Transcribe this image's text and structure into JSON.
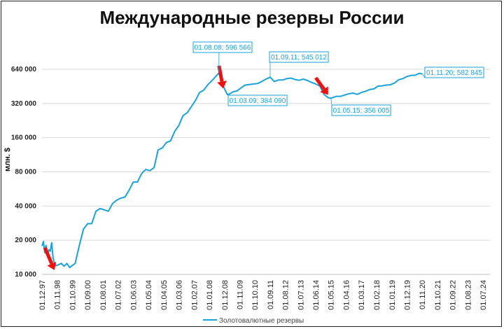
{
  "title": "Международные резервы России",
  "chart_data": {
    "type": "line",
    "ylabel": "млн. $",
    "yscale": "log2",
    "ylim": [
      10000,
      900000
    ],
    "yticks": [
      10000,
      20000,
      40000,
      80000,
      160000,
      320000,
      640000
    ],
    "ytick_labels": [
      "10 000",
      "20 000",
      "40 000",
      "80 000",
      "160 000",
      "320 000",
      "640 000"
    ],
    "xlim": [
      "1997-12-01",
      "2024-12-01"
    ],
    "xtick_labels": [
      "01.12.97",
      "01.11.98",
      "01.10.99",
      "01.09.00",
      "01.08.01",
      "01.07.02",
      "01.06.03",
      "01.05.04",
      "01.04.05",
      "01.03.06",
      "01.02.07",
      "01.01.08",
      "01.12.08",
      "01.11.09",
      "01.10.10",
      "01.09.11",
      "01.08.12",
      "01.07.13",
      "01.06.14",
      "01.05.15",
      "01.04.16",
      "01.03.17",
      "01.02.18",
      "01.01.19",
      "01.12.19",
      "01.11.20",
      "01.10.21",
      "01.09.22",
      "01.08.23",
      "01.07.24"
    ],
    "series": [
      {
        "name": "Золотовалютные резервы",
        "color": "#1aa3d9",
        "x": [
          "1997-12-01",
          "1998-01-01",
          "1998-02-01",
          "1998-03-01",
          "1998-04-01",
          "1998-05-01",
          "1998-06-01",
          "1998-07-01",
          "1998-08-01",
          "1998-09-01",
          "1998-10-01",
          "1998-11-01",
          "1998-12-01",
          "1999-02-01",
          "1999-04-01",
          "1999-06-01",
          "1999-08-01",
          "1999-10-01",
          "1999-12-01",
          "2000-03-01",
          "2000-06-01",
          "2000-09-01",
          "2000-12-01",
          "2001-03-01",
          "2001-06-01",
          "2001-09-01",
          "2001-12-01",
          "2002-03-01",
          "2002-06-01",
          "2002-09-01",
          "2002-12-01",
          "2003-03-01",
          "2003-06-01",
          "2003-09-01",
          "2003-12-01",
          "2004-03-01",
          "2004-06-01",
          "2004-09-01",
          "2004-12-01",
          "2005-03-01",
          "2005-06-01",
          "2005-09-01",
          "2005-12-01",
          "2006-03-01",
          "2006-06-01",
          "2006-09-01",
          "2006-12-01",
          "2007-03-01",
          "2007-06-01",
          "2007-09-01",
          "2007-12-01",
          "2008-03-01",
          "2008-06-01",
          "2008-08-01",
          "2008-10-01",
          "2008-12-01",
          "2009-02-01",
          "2009-03-01",
          "2009-06-01",
          "2009-09-01",
          "2009-12-01",
          "2010-03-01",
          "2010-06-01",
          "2010-09-01",
          "2010-12-01",
          "2011-03-01",
          "2011-06-01",
          "2011-09-01",
          "2011-12-01",
          "2012-03-01",
          "2012-06-01",
          "2012-09-01",
          "2012-12-01",
          "2013-03-01",
          "2013-06-01",
          "2013-09-01",
          "2013-12-01",
          "2014-03-01",
          "2014-06-01",
          "2014-09-01",
          "2014-12-01",
          "2015-03-01",
          "2015-05-01",
          "2015-09-01",
          "2015-12-01",
          "2016-03-01",
          "2016-06-01",
          "2016-09-01",
          "2016-12-01",
          "2017-03-01",
          "2017-06-01",
          "2017-09-01",
          "2017-12-01",
          "2018-03-01",
          "2018-06-01",
          "2018-09-01",
          "2018-12-01",
          "2019-03-01",
          "2019-06-01",
          "2019-09-01",
          "2019-12-01",
          "2020-03-01",
          "2020-06-01",
          "2020-09-01",
          "2020-11-01"
        ],
        "values": [
          17800,
          19500,
          15500,
          18000,
          14500,
          16500,
          16000,
          19000,
          14000,
          12500,
          12000,
          12000,
          12200,
          12500,
          11800,
          12500,
          11500,
          12000,
          12500,
          18000,
          25000,
          28000,
          28000,
          36000,
          38000,
          37000,
          36000,
          42000,
          45000,
          47000,
          48000,
          55000,
          65000,
          65000,
          77000,
          84000,
          82000,
          87000,
          125000,
          130000,
          145000,
          150000,
          182000,
          205000,
          250000,
          265000,
          300000,
          340000,
          400000,
          420000,
          470000,
          510000,
          560000,
          596566,
          490000,
          430000,
          384090,
          384090,
          405000,
          413000,
          440000,
          465000,
          470000,
          475000,
          480000,
          500000,
          525000,
          545012,
          500000,
          515000,
          515000,
          530000,
          535000,
          520000,
          512000,
          525000,
          510000,
          490000,
          475000,
          455000,
          385000,
          360000,
          356005,
          370000,
          370000,
          380000,
          390000,
          395000,
          385000,
          400000,
          410000,
          425000,
          430000,
          455000,
          458000,
          465000,
          468000,
          485000,
          518000,
          530000,
          554000,
          565000,
          568000,
          590000,
          582845
        ]
      }
    ],
    "annotations": [
      {
        "text": "01.08.08; 596 566"
      },
      {
        "text": "01.03.09; 384 090"
      },
      {
        "text": "01.09.11; 545 012"
      },
      {
        "text": "01.05.15; 356 005"
      },
      {
        "text": "01.11.20; 582 845"
      }
    ],
    "legend_position": "bottom",
    "grid": true,
    "arrow_color": "#ee1111"
  }
}
